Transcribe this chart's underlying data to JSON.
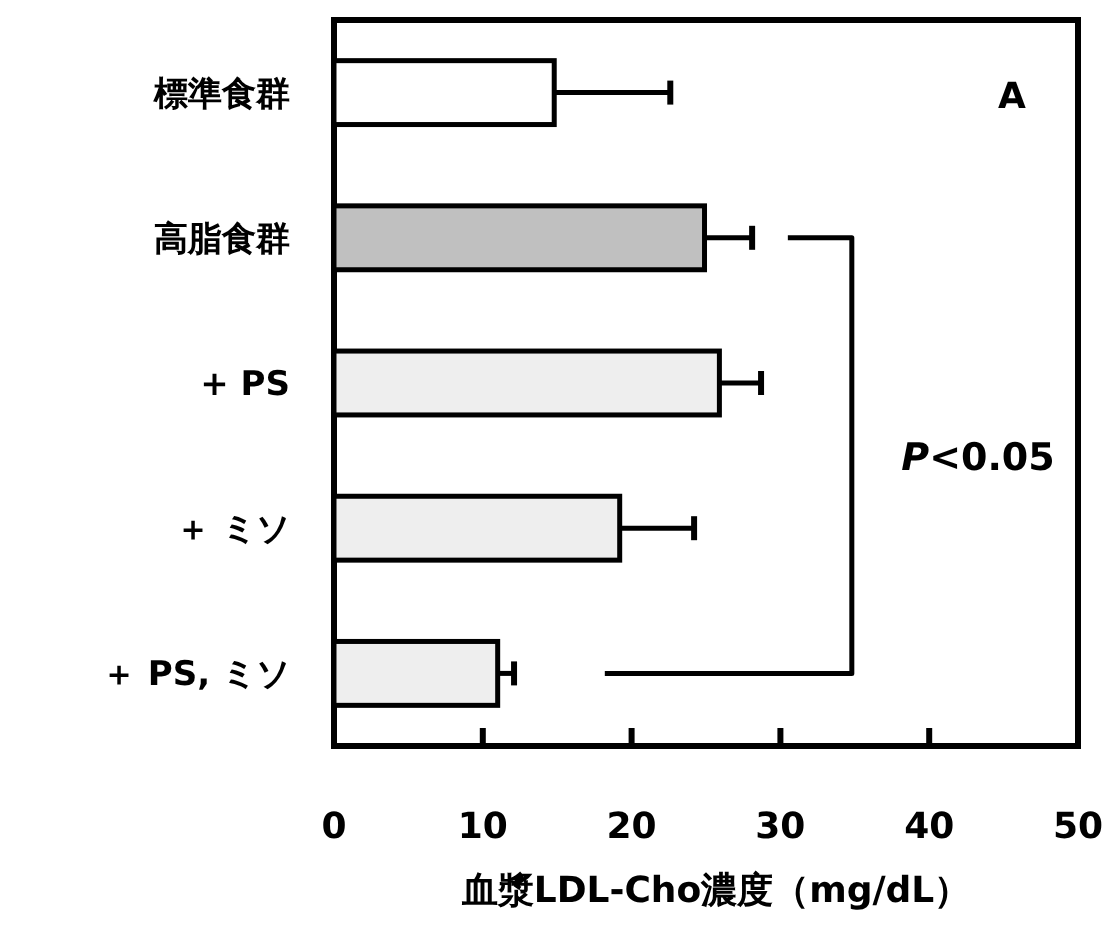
{
  "chart_data": {
    "type": "bar",
    "orientation": "horizontal",
    "categories": [
      "標準食群",
      "高脂食群",
      "+ PS",
      "＋ ミソ",
      "＋ PS, ミソ"
    ],
    "values": [
      14.8,
      24.9,
      25.9,
      19.2,
      11.0
    ],
    "errors": [
      7.8,
      3.2,
      2.8,
      5.0,
      1.1
    ],
    "colors": [
      "#ffffff",
      "#c0c0c0",
      "#eeeeee",
      "#eeeeee",
      "#eeeeee"
    ],
    "xlabel": "血漿LDL-Cho濃度（mg/dL）",
    "xlim": [
      0,
      50
    ],
    "xticks": [
      0,
      10,
      20,
      30,
      40,
      50
    ],
    "annotations": [
      "A",
      "P<0.05"
    ],
    "grid": false
  }
}
